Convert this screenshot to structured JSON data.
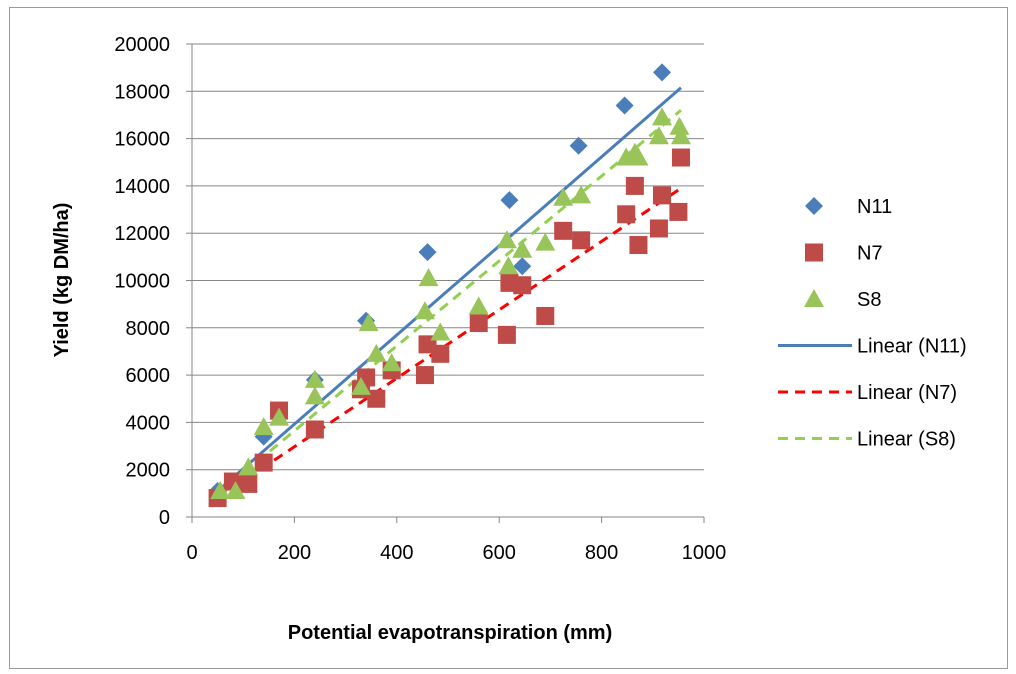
{
  "chart_data": {
    "type": "scatter",
    "xlabel": "Potential evapotranspiration (mm)",
    "ylabel": "Yield (kg DM/ha)",
    "xlim": [
      0,
      1000
    ],
    "ylim": [
      0,
      20000
    ],
    "xticks": [
      0,
      200,
      400,
      600,
      800,
      1000
    ],
    "yticks": [
      0,
      2000,
      4000,
      6000,
      8000,
      10000,
      12000,
      14000,
      16000,
      18000,
      20000
    ],
    "xtick_labels": [
      "0",
      "200",
      "400",
      "600",
      "800",
      "1000"
    ],
    "ytick_labels": [
      "0",
      "2000",
      "4000",
      "6000",
      "8000",
      "10000",
      "12000",
      "14000",
      "16000",
      "18000",
      "20000"
    ],
    "grid": "horizontal",
    "legend_position": "right",
    "series": [
      {
        "name": "N11",
        "marker": "diamond",
        "color": "#4a7ebb",
        "points": [
          [
            50,
            1100
          ],
          [
            140,
            3400
          ],
          [
            240,
            5800
          ],
          [
            340,
            8300
          ],
          [
            460,
            11200
          ],
          [
            620,
            13400
          ],
          [
            645,
            10600
          ],
          [
            755,
            15700
          ],
          [
            845,
            17400
          ],
          [
            918,
            18800
          ]
        ]
      },
      {
        "name": "N7",
        "marker": "square",
        "color": "#be4b48",
        "points": [
          [
            50,
            800
          ],
          [
            80,
            1500
          ],
          [
            110,
            1400
          ],
          [
            140,
            2300
          ],
          [
            170,
            4500
          ],
          [
            240,
            3700
          ],
          [
            330,
            5400
          ],
          [
            340,
            5900
          ],
          [
            360,
            5000
          ],
          [
            390,
            6200
          ],
          [
            455,
            6000
          ],
          [
            460,
            7300
          ],
          [
            485,
            6900
          ],
          [
            560,
            8200
          ],
          [
            615,
            7700
          ],
          [
            620,
            9900
          ],
          [
            645,
            9800
          ],
          [
            690,
            8500
          ],
          [
            725,
            12100
          ],
          [
            760,
            11700
          ],
          [
            848,
            12800
          ],
          [
            865,
            14000
          ],
          [
            872,
            11500
          ],
          [
            912,
            12200
          ],
          [
            918,
            13600
          ],
          [
            950,
            12900
          ],
          [
            955,
            15200
          ]
        ]
      },
      {
        "name": "S8",
        "marker": "triangle",
        "color": "#98c459",
        "points": [
          [
            55,
            1100
          ],
          [
            85,
            1100
          ],
          [
            110,
            2100
          ],
          [
            140,
            3800
          ],
          [
            170,
            4200
          ],
          [
            240,
            5800
          ],
          [
            240,
            5100
          ],
          [
            330,
            5500
          ],
          [
            345,
            8200
          ],
          [
            360,
            6900
          ],
          [
            390,
            6500
          ],
          [
            455,
            8700
          ],
          [
            462,
            10100
          ],
          [
            485,
            7800
          ],
          [
            560,
            8900
          ],
          [
            615,
            11700
          ],
          [
            618,
            10600
          ],
          [
            645,
            11300
          ],
          [
            690,
            11600
          ],
          [
            725,
            13500
          ],
          [
            760,
            13600
          ],
          [
            848,
            15200
          ],
          [
            865,
            15400
          ],
          [
            872,
            15200
          ],
          [
            912,
            16100
          ],
          [
            918,
            16900
          ],
          [
            952,
            16500
          ],
          [
            955,
            16100
          ]
        ]
      }
    ],
    "trendlines": [
      {
        "name": "Linear (N11)",
        "style": "solid",
        "color": "#4a7ebb",
        "x": [
          50,
          955
        ],
        "y": [
          1100,
          18150
        ]
      },
      {
        "name": "Linear (N7)",
        "style": "dashed",
        "color": "#ff0000",
        "x": [
          50,
          955
        ],
        "y": [
          800,
          13900
        ]
      },
      {
        "name": "Linear (S8)",
        "style": "dashed",
        "color": "#92d050",
        "x": [
          50,
          955
        ],
        "y": [
          950,
          17200
        ]
      }
    ]
  }
}
